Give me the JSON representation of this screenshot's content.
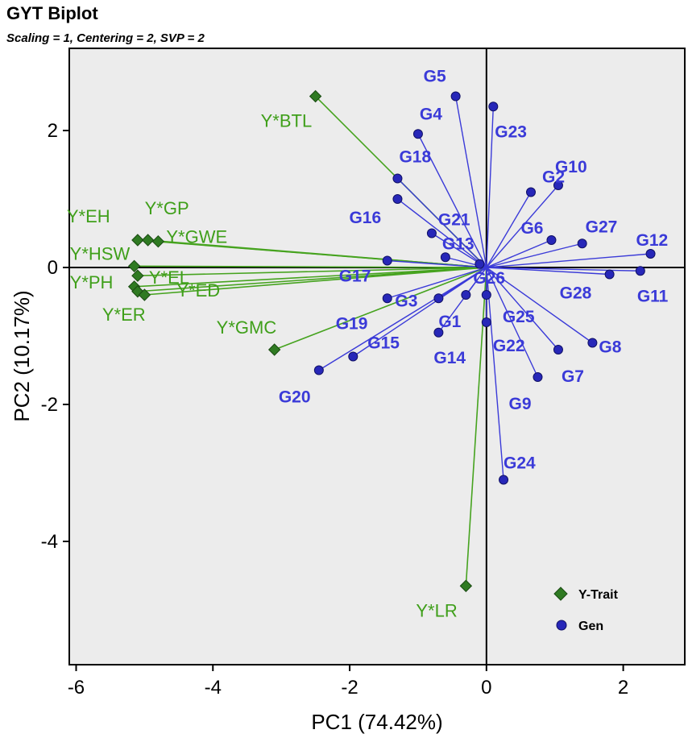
{
  "chart_data": {
    "type": "scatter",
    "title": "GYT Biplot",
    "subtitle": "Scaling = 1, Centering = 2, SVP = 2",
    "xlabel": "PC1 (74.42%)",
    "ylabel": "PC2 (10.17%)",
    "xlim": [
      -6.1,
      2.9
    ],
    "ylim": [
      -5.8,
      3.2
    ],
    "xticks": [
      -6,
      -4,
      -2,
      0,
      2
    ],
    "yticks": [
      -4,
      -2,
      0,
      2
    ],
    "legend_position": "bottom-right",
    "legend": [
      "Y-Trait",
      "Gen"
    ],
    "colors": {
      "trait_line": "#46a31f",
      "trait_text": "#3f9f1a",
      "trait_marker": "#2f7a22",
      "gen_line": "#3a3ad8",
      "gen_text": "#3a3ad8",
      "gen_marker": "#2727b8",
      "plot_bg": "#ececec"
    },
    "series": [
      {
        "name": "Y-Trait",
        "points": [
          {
            "label": "Y*BTL",
            "x": -2.5,
            "y": 2.5
          },
          {
            "label": "Y*EH",
            "x": -5.1,
            "y": 0.4
          },
          {
            "label": "Y*GP",
            "x": -4.95,
            "y": 0.4
          },
          {
            "label": "Y*GWE",
            "x": -4.8,
            "y": 0.38
          },
          {
            "label": "Y*HSW",
            "x": -5.15,
            "y": 0.02
          },
          {
            "label": "Y*EL",
            "x": -5.1,
            "y": -0.12
          },
          {
            "label": "Y*PH",
            "x": -5.15,
            "y": -0.28
          },
          {
            "label": "Y*ER",
            "x": -5.1,
            "y": -0.35
          },
          {
            "label": "Y*ED",
            "x": -5.0,
            "y": -0.4
          },
          {
            "label": "Y*GMC",
            "x": -3.1,
            "y": -1.2
          },
          {
            "label": "Y*LR",
            "x": -0.3,
            "y": -4.65
          }
        ]
      },
      {
        "name": "Gen",
        "points": [
          {
            "label": "G5",
            "x": -0.45,
            "y": 2.5
          },
          {
            "label": "G23",
            "x": 0.1,
            "y": 2.35
          },
          {
            "label": "G4",
            "x": -1.0,
            "y": 1.95
          },
          {
            "label": "G18",
            "x": -1.3,
            "y": 1.3
          },
          {
            "label": "G16",
            "x": -1.3,
            "y": 1.0
          },
          {
            "label": "G21",
            "x": -0.8,
            "y": 0.5
          },
          {
            "label": "G2",
            "x": 0.65,
            "y": 1.1
          },
          {
            "label": "G10",
            "x": 1.05,
            "y": 1.2
          },
          {
            "label": "G6",
            "x": 0.95,
            "y": 0.4
          },
          {
            "label": "G27",
            "x": 1.4,
            "y": 0.35
          },
          {
            "label": "G12",
            "x": 2.4,
            "y": 0.2
          },
          {
            "label": "G13",
            "x": -0.6,
            "y": 0.15
          },
          {
            "label": "G17",
            "x": -1.45,
            "y": 0.1
          },
          {
            "label": "G26",
            "x": -0.1,
            "y": 0.05
          },
          {
            "label": "G28",
            "x": 1.8,
            "y": -0.1
          },
          {
            "label": "G11",
            "x": 2.25,
            "y": -0.05
          },
          {
            "label": "G3",
            "x": -0.7,
            "y": -0.45
          },
          {
            "label": "G19",
            "x": -1.45,
            "y": -0.45
          },
          {
            "label": "G1",
            "x": -0.3,
            "y": -0.4
          },
          {
            "label": "G25",
            "x": 0.0,
            "y": -0.4
          },
          {
            "label": "G14",
            "x": -0.7,
            "y": -0.95
          },
          {
            "label": "G22",
            "x": 0.0,
            "y": -0.8
          },
          {
            "label": "G8",
            "x": 1.55,
            "y": -1.1
          },
          {
            "label": "G7",
            "x": 1.05,
            "y": -1.2
          },
          {
            "label": "G15",
            "x": -1.95,
            "y": -1.3
          },
          {
            "label": "G20",
            "x": -2.45,
            "y": -1.5
          },
          {
            "label": "G9",
            "x": 0.75,
            "y": -1.6
          },
          {
            "label": "G24",
            "x": 0.25,
            "y": -3.1
          }
        ]
      }
    ]
  }
}
